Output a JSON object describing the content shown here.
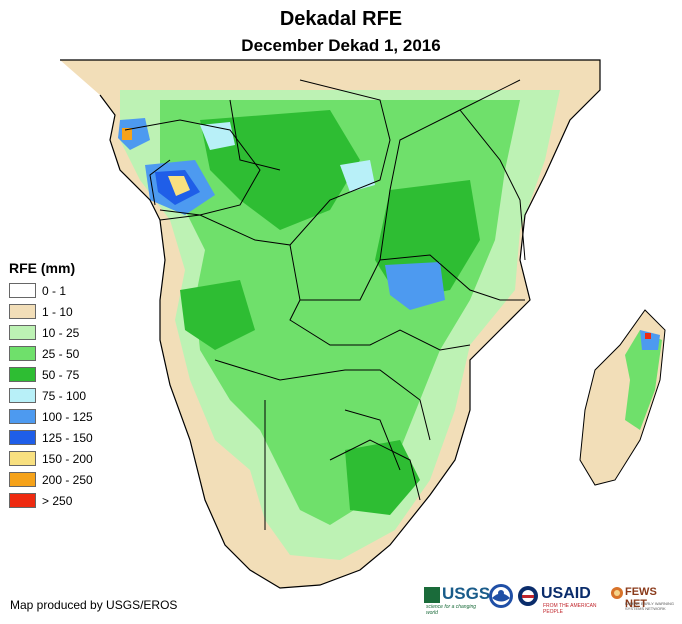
{
  "title": "Dekadal RFE",
  "subtitle": "December Dekad 1, 2016",
  "legend": {
    "title": "RFE (mm)",
    "items": [
      {
        "label": "0 - 1",
        "color": "#ffffff"
      },
      {
        "label": "1 - 10",
        "color": "#f2deb8"
      },
      {
        "label": "10 - 25",
        "color": "#bdf2b4"
      },
      {
        "label": "25 - 50",
        "color": "#6fe06b"
      },
      {
        "label": "50 - 75",
        "color": "#2ebd33"
      },
      {
        "label": "75 - 100",
        "color": "#b8f0f8"
      },
      {
        "label": "100 - 125",
        "color": "#4d9af0"
      },
      {
        "label": "125 - 150",
        "color": "#1f5ee8"
      },
      {
        "label": "150 - 200",
        "color": "#f8e080"
      },
      {
        "label": "200 - 250",
        "color": "#f5a21a"
      },
      {
        "label": "> 250",
        "color": "#ee2a10"
      }
    ]
  },
  "credit": "Map produced by USGS/EROS",
  "logos": {
    "usgs": "USGS",
    "usgs_tagline": "science for a changing world",
    "usaid": "USAID",
    "usaid_tagline": "FROM THE AMERICAN PEOPLE",
    "fews": "FEWS NET",
    "fews_tagline": "FAMINE EARLY WARNING SYSTEMS NETWORK"
  }
}
